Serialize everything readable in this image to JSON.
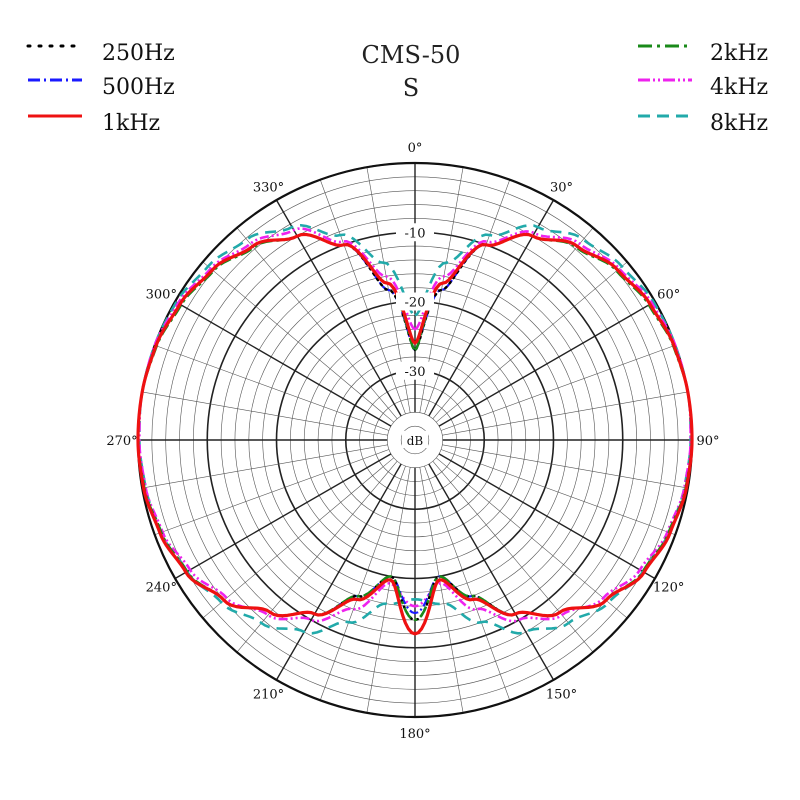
{
  "chart_data": {
    "type": "polar",
    "title": "CMS-50",
    "subtitle": "S",
    "unit_label": "dB",
    "r_range_db": [
      -40,
      0
    ],
    "grid": true,
    "angle_ticks": [
      0,
      30,
      60,
      90,
      120,
      150,
      180,
      210,
      240,
      270,
      300,
      330
    ],
    "angle_tick_labels": [
      "0°",
      "30°",
      "60°",
      "90°",
      "120°",
      "150°",
      "180°",
      "210°",
      "240°",
      "270°",
      "300°",
      "330°"
    ],
    "ring_ticks": [
      -10,
      -20,
      -30
    ],
    "ring_tick_labels": [
      "-10",
      "-20",
      "-30"
    ],
    "legend_left": [
      {
        "name": "250Hz",
        "color": "#000000",
        "style": "dotted"
      },
      {
        "name": "500Hz",
        "color": "#1a1aff",
        "style": "dashdot"
      },
      {
        "name": "1kHz",
        "color": "#ee1111",
        "style": "solid"
      }
    ],
    "legend_right": [
      {
        "name": "2kHz",
        "color": "#1a8a1a",
        "style": "dashdot"
      },
      {
        "name": "4kHz",
        "color": "#ee22ee",
        "style": "dashdotdot"
      },
      {
        "name": "8kHz",
        "color": "#22aaaa",
        "style": "dashed"
      }
    ],
    "series": [
      {
        "name": "250Hz",
        "angles": [
          0,
          10,
          20,
          30,
          40,
          50,
          60,
          70,
          80,
          90,
          100,
          110,
          120,
          130,
          140,
          150,
          160,
          170,
          180,
          190,
          200,
          210,
          220,
          230,
          240,
          250,
          260,
          270,
          280,
          290,
          300,
          310,
          320,
          330,
          340,
          350
        ],
        "values": [
          -27,
          -18,
          -10,
          -6,
          -3.5,
          -1.8,
          -0.8,
          -0.2,
          0,
          0,
          -0.2,
          -0.8,
          -1.8,
          -4,
          -7.5,
          -11,
          -16,
          -20,
          -14,
          -20,
          -16,
          -11,
          -7.5,
          -4,
          -1.8,
          -0.8,
          -0.2,
          0,
          0,
          -0.2,
          -0.8,
          -1.8,
          -3.5,
          -6,
          -10,
          -18
        ]
      },
      {
        "name": "500Hz",
        "angles": [
          0,
          10,
          20,
          30,
          40,
          50,
          60,
          70,
          80,
          90,
          100,
          110,
          120,
          130,
          140,
          150,
          160,
          170,
          180,
          190,
          200,
          210,
          220,
          230,
          240,
          250,
          260,
          270,
          280,
          290,
          300,
          310,
          320,
          330,
          340,
          350
        ],
        "values": [
          -27,
          -18,
          -10,
          -6,
          -3.5,
          -1.8,
          -0.8,
          -0.2,
          0,
          0,
          -0.2,
          -0.8,
          -1.8,
          -4,
          -7.5,
          -11,
          -16,
          -20,
          -15,
          -20,
          -16,
          -11,
          -7.5,
          -4,
          -1.8,
          -0.8,
          -0.2,
          0,
          0,
          -0.2,
          -0.8,
          -1.8,
          -3.5,
          -6,
          -10,
          -18
        ]
      },
      {
        "name": "1kHz",
        "angles": [
          0,
          10,
          20,
          30,
          40,
          50,
          60,
          70,
          80,
          90,
          100,
          110,
          120,
          130,
          140,
          150,
          160,
          170,
          180,
          190,
          200,
          210,
          220,
          230,
          240,
          250,
          260,
          270,
          280,
          290,
          300,
          310,
          320,
          330,
          340,
          350
        ],
        "values": [
          -26,
          -17,
          -10,
          -6,
          -3.5,
          -1.8,
          -0.8,
          -0.2,
          0,
          0,
          -0.2,
          -0.8,
          -1.8,
          -4,
          -7.5,
          -11,
          -15.5,
          -19.5,
          -12,
          -19.5,
          -15.5,
          -11,
          -7.5,
          -4,
          -1.8,
          -0.8,
          -0.2,
          0,
          0,
          -0.2,
          -0.8,
          -1.8,
          -3.5,
          -6,
          -10,
          -17
        ]
      },
      {
        "name": "2kHz",
        "angles": [
          0,
          10,
          20,
          30,
          40,
          50,
          60,
          70,
          80,
          90,
          100,
          110,
          120,
          130,
          140,
          150,
          160,
          170,
          180,
          190,
          200,
          210,
          220,
          230,
          240,
          250,
          260,
          270,
          280,
          290,
          300,
          310,
          320,
          330,
          340,
          350
        ],
        "values": [
          -27,
          -17,
          -10,
          -6,
          -3.7,
          -2,
          -1,
          -0.3,
          0,
          0,
          -0.3,
          -1,
          -2,
          -4,
          -7.5,
          -11,
          -16,
          -20,
          -14,
          -20,
          -16,
          -11,
          -7.5,
          -4,
          -2,
          -1,
          -0.3,
          0,
          0,
          -0.3,
          -1,
          -2,
          -3.7,
          -6,
          -10,
          -17
        ]
      },
      {
        "name": "4kHz",
        "angles": [
          0,
          10,
          20,
          30,
          40,
          50,
          60,
          70,
          80,
          90,
          100,
          110,
          120,
          130,
          140,
          150,
          160,
          170,
          180,
          190,
          200,
          210,
          220,
          230,
          240,
          250,
          260,
          270,
          280,
          290,
          300,
          310,
          320,
          330,
          340,
          350
        ],
        "values": [
          -24,
          -16,
          -9.5,
          -5.5,
          -3,
          -1.5,
          -0.5,
          0,
          0,
          -0.2,
          -0.5,
          -1.2,
          -2.5,
          -4.5,
          -7,
          -10,
          -14,
          -19,
          -16,
          -19,
          -14,
          -10,
          -7,
          -4.5,
          -2.5,
          -1.2,
          -0.5,
          -0.2,
          0,
          0,
          -0.5,
          -1.5,
          -3,
          -5,
          -9.5,
          -16
        ]
      },
      {
        "name": "8kHz",
        "angles": [
          0,
          10,
          20,
          30,
          40,
          50,
          60,
          70,
          80,
          90,
          100,
          110,
          120,
          130,
          140,
          150,
          160,
          170,
          180,
          190,
          200,
          210,
          220,
          230,
          240,
          250,
          260,
          270,
          280,
          290,
          300,
          310,
          320,
          330,
          340,
          350
        ],
        "values": [
          -22,
          -14,
          -8.5,
          -4.5,
          -2.2,
          -1,
          -0.2,
          0,
          0,
          -0.2,
          -0.5,
          -1,
          -2,
          -3.5,
          -5.5,
          -8,
          -12,
          -16,
          -17,
          -16,
          -12,
          -8,
          -5.5,
          -3.5,
          -2,
          -1,
          -0.5,
          -0.2,
          0,
          0,
          -0.2,
          -1,
          -2.2,
          -4.5,
          -8.5,
          -14
        ]
      }
    ]
  }
}
